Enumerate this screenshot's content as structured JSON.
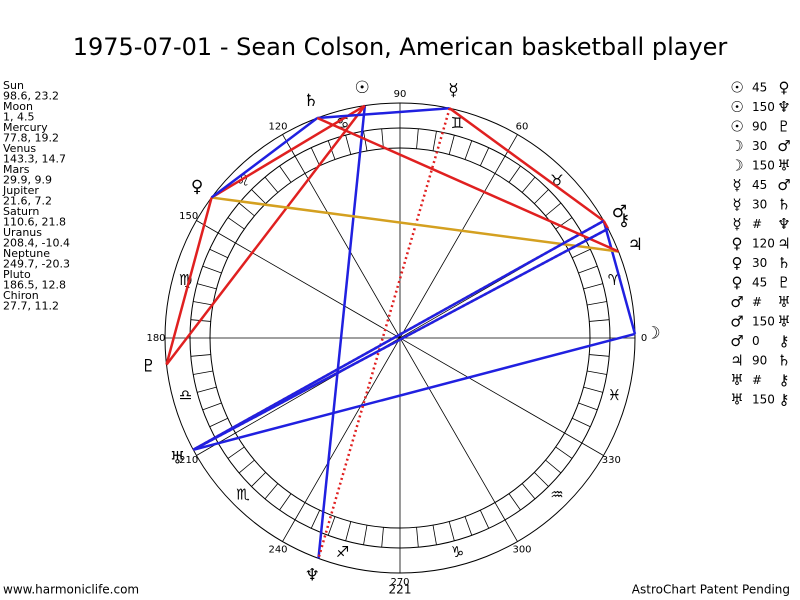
{
  "header": {
    "title": "1975-07-01 - Sean Colson, American basketball player"
  },
  "planets": [
    {
      "name": "Sun",
      "glyph": "☉",
      "lon": 98.6,
      "lat": 23.2
    },
    {
      "name": "Moon",
      "glyph": "☽",
      "lon": 1.0,
      "lat": 4.5
    },
    {
      "name": "Mercury",
      "glyph": "☿",
      "lon": 77.8,
      "lat": 19.2
    },
    {
      "name": "Venus",
      "glyph": "♀",
      "lon": 143.3,
      "lat": 14.7
    },
    {
      "name": "Mars",
      "glyph": "♂",
      "lon": 29.9,
      "lat": 9.9
    },
    {
      "name": "Jupiter",
      "glyph": "♃",
      "lon": 21.6,
      "lat": 7.2
    },
    {
      "name": "Saturn",
      "glyph": "♄",
      "lon": 110.6,
      "lat": 21.8
    },
    {
      "name": "Uranus",
      "glyph": "♅",
      "lon": 208.4,
      "lat": -10.4
    },
    {
      "name": "Neptune",
      "glyph": "♆",
      "lon": 249.7,
      "lat": -20.3
    },
    {
      "name": "Pluto",
      "glyph": "♇",
      "lon": 186.5,
      "lat": 12.8
    },
    {
      "name": "Chiron",
      "glyph": "⚷",
      "lon": 27.7,
      "lat": 11.2
    }
  ],
  "aspects": [
    {
      "from": "☉",
      "aspect": 45,
      "to": "♀"
    },
    {
      "from": "☉",
      "aspect": 150,
      "to": "♆"
    },
    {
      "from": "☉",
      "aspect": 90,
      "to": "♇"
    },
    {
      "from": "☽",
      "aspect": 30,
      "to": "♂"
    },
    {
      "from": "☽",
      "aspect": 150,
      "to": "♅"
    },
    {
      "from": "☿",
      "aspect": 45,
      "to": "♂"
    },
    {
      "from": "☿",
      "aspect": 30,
      "to": "♄"
    },
    {
      "from": "☿",
      "aspect": "#",
      "to": "♆"
    },
    {
      "from": "♀",
      "aspect": 120,
      "to": "♃"
    },
    {
      "from": "♀",
      "aspect": 30,
      "to": "♄"
    },
    {
      "from": "♀",
      "aspect": 45,
      "to": "♇"
    },
    {
      "from": "♂",
      "aspect": "#",
      "to": "♅"
    },
    {
      "from": "♂",
      "aspect": 150,
      "to": "♅"
    },
    {
      "from": "♂",
      "aspect": 0,
      "to": "⚷"
    },
    {
      "from": "♃",
      "aspect": 90,
      "to": "♄"
    },
    {
      "from": "♅",
      "aspect": "#",
      "to": "⚷"
    },
    {
      "from": "♅",
      "aspect": 150,
      "to": "⚷"
    }
  ],
  "aspect_colors": {
    "0": "#e02020",
    "30": "#2020e0",
    "45": "#e02020",
    "90": "#e02020",
    "120": "#d4a020",
    "150": "#2020e0",
    "#": "#e02020"
  },
  "signs": [
    "♈",
    "♉",
    "♊",
    "♋",
    "♌",
    "♍",
    "♎",
    "♏",
    "♐",
    "♑",
    "♒",
    "♓"
  ],
  "degree_labels": [
    0,
    60,
    90,
    120,
    150,
    180,
    210,
    240,
    270,
    300,
    330
  ],
  "footer": {
    "site": "www.harmoniclife.com",
    "center_label": "221",
    "credit": "AstroChart Patent Pending"
  }
}
